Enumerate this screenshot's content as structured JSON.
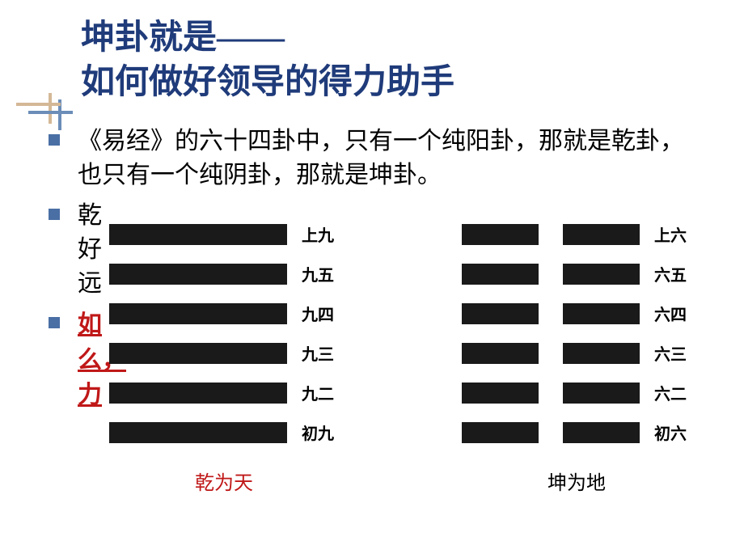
{
  "title": {
    "line1": "坤卦就是——",
    "line2": "如何做好领导的得力助手",
    "color": "#1f3b7a",
    "fontsize": 42
  },
  "decoration": {
    "color1": "#d4b896",
    "color2": "#6b8db8"
  },
  "bullets": [
    {
      "text": "《易经》的六十四卦中，只有一个纯阳卦，那就是乾卦，也只有一个纯阴卦，那就是坤卦。"
    },
    {
      "text_left1": "乾",
      "text_left2": "好",
      "text_left3": "远"
    },
    {
      "text_left1": "如",
      "text_left2": "么",
      "text_left3": "力",
      "red": true
    }
  ],
  "partial_right": {
    "r1": "",
    "r2": ""
  },
  "hexagrams": {
    "qian": {
      "name": "乾为天",
      "name_color": "#c01818",
      "line_labels": [
        "上九",
        "九五",
        "九四",
        "九三",
        "九二",
        "初九"
      ],
      "line_type": "yang",
      "bar_color": "#1a1a1a"
    },
    "kun": {
      "name": "坤为地",
      "name_color": "#000000",
      "line_labels": [
        "上六",
        "六五",
        "六四",
        "六三",
        "六二",
        "初六"
      ],
      "line_type": "yin",
      "bar_color": "#1a1a1a"
    }
  },
  "bullet_color": "#4a6fa5",
  "background_color": "#ffffff"
}
